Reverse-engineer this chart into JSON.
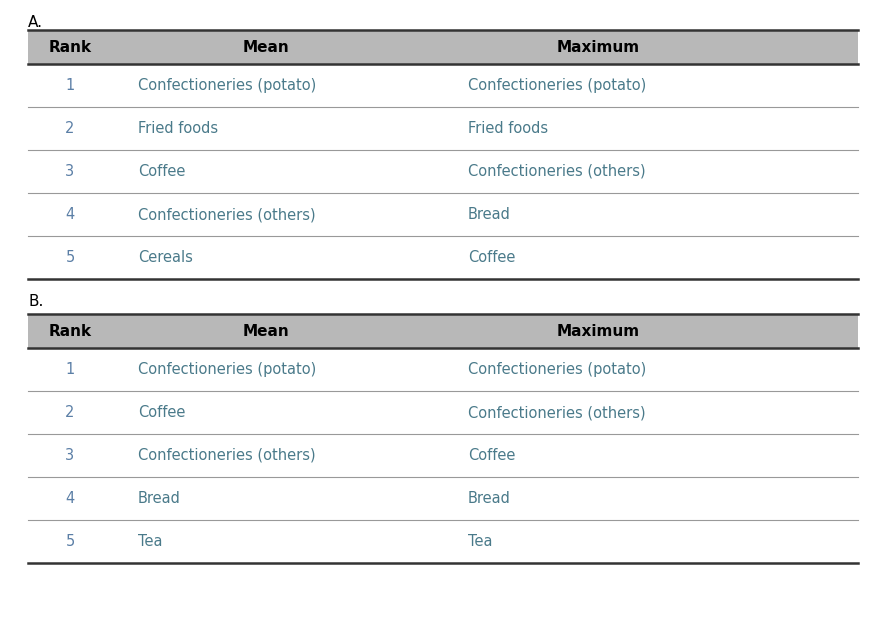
{
  "title_A": "A.",
  "title_B": "B.",
  "header": [
    "Rank",
    "Mean",
    "Maximum"
  ],
  "table_A": [
    [
      "1",
      "Confectioneries (potato)",
      "Confectioneries (potato)"
    ],
    [
      "2",
      "Fried foods",
      "Fried foods"
    ],
    [
      "3",
      "Coffee",
      "Confectioneries (others)"
    ],
    [
      "4",
      "Confectioneries (others)",
      "Bread"
    ],
    [
      "5",
      "Cereals",
      "Coffee"
    ]
  ],
  "table_B": [
    [
      "1",
      "Confectioneries (potato)",
      "Confectioneries (potato)"
    ],
    [
      "2",
      "Coffee",
      "Confectioneries (others)"
    ],
    [
      "3",
      "Confectioneries (others)",
      "Coffee"
    ],
    [
      "4",
      "Bread",
      "Bread"
    ],
    [
      "5",
      "Tea",
      "Tea"
    ]
  ],
  "header_bg": "#b8b8b8",
  "header_text_color": "#000000",
  "rank_color": "#5b7fa6",
  "data_color": "#4a7a8a",
  "bg_color": "#ffffff",
  "row_line_color": "#999999",
  "outer_line_color": "#333333",
  "header_fontsize": 11,
  "cell_fontsize": 10.5,
  "label_fontsize": 11
}
